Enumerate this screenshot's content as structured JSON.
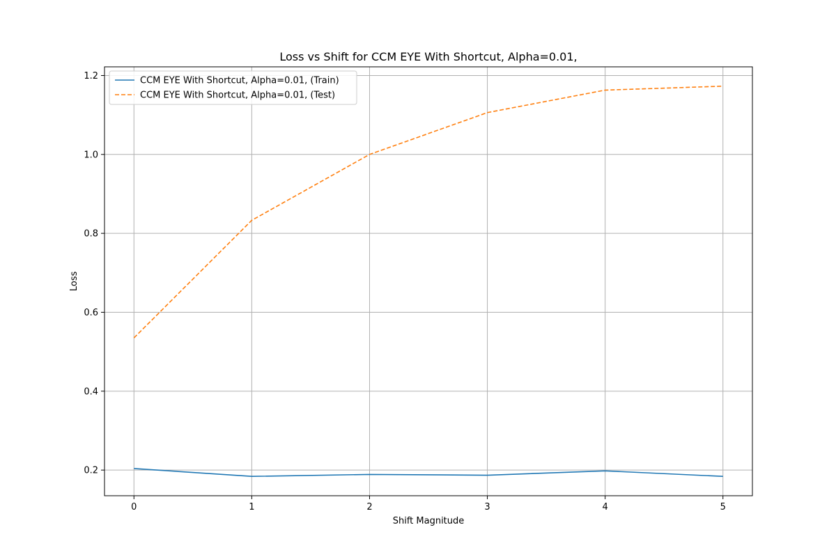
{
  "chart_data": {
    "type": "line",
    "title": "Loss vs Shift for CCM EYE With Shortcut, Alpha=0.01,",
    "xlabel": "Shift Magnitude",
    "ylabel": "Loss",
    "x": [
      0,
      1,
      2,
      3,
      4,
      5
    ],
    "xticks": [
      "0",
      "1",
      "2",
      "3",
      "4",
      "5"
    ],
    "yticks": [
      "0.2",
      "0.4",
      "0.6",
      "0.8",
      "1.0",
      "1.2"
    ],
    "xlim": [
      -0.25,
      5.25
    ],
    "ylim": [
      0.135,
      1.222
    ],
    "grid": true,
    "legend_position": "top-left",
    "series": [
      {
        "name": "CCM EYE With Shortcut, Alpha=0.01, (Train)",
        "values": [
          0.204,
          0.184,
          0.189,
          0.187,
          0.198,
          0.184
        ],
        "color": "#1f77b4",
        "style": "solid"
      },
      {
        "name": "CCM EYE With Shortcut, Alpha=0.01, (Test)",
        "values": [
          0.535,
          0.833,
          1.0,
          1.106,
          1.163,
          1.173
        ],
        "color": "#ff7f0e",
        "style": "dashed"
      }
    ]
  }
}
